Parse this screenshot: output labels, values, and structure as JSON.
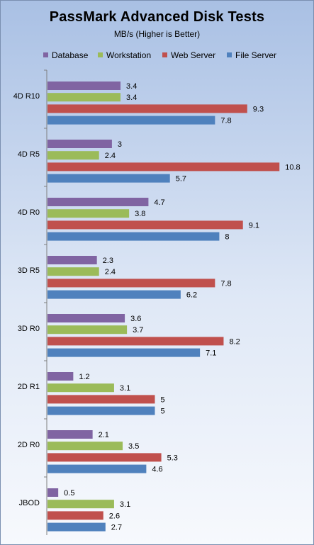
{
  "chart_data": {
    "type": "bar",
    "orientation": "horizontal",
    "title": "PassMark Advanced Disk Tests",
    "subtitle": "MB/s (Higher is Better)",
    "xlabel": "",
    "ylabel": "",
    "xlim": [
      0,
      11.5
    ],
    "grid": false,
    "legend_position": "top",
    "categories": [
      "4D R10",
      "4D R5",
      "4D R0",
      "3D R5",
      "3D R0",
      "2D R1",
      "2D R0",
      "JBOD"
    ],
    "series": [
      {
        "name": "Database",
        "color": "#8064a2",
        "values": [
          3.4,
          3,
          4.7,
          2.3,
          3.6,
          1.2,
          2.1,
          0.5
        ]
      },
      {
        "name": "Workstation",
        "color": "#9bbb59",
        "values": [
          3.4,
          2.4,
          3.8,
          2.4,
          3.7,
          3.1,
          3.5,
          3.1
        ]
      },
      {
        "name": "Web Server",
        "color": "#c0504d",
        "values": [
          9.3,
          10.8,
          9.1,
          7.8,
          8.2,
          5,
          5.3,
          2.6
        ]
      },
      {
        "name": "File Server",
        "color": "#4f81bd",
        "values": [
          7.8,
          5.7,
          8,
          6.2,
          7.1,
          5,
          4.6,
          2.7
        ]
      }
    ]
  }
}
